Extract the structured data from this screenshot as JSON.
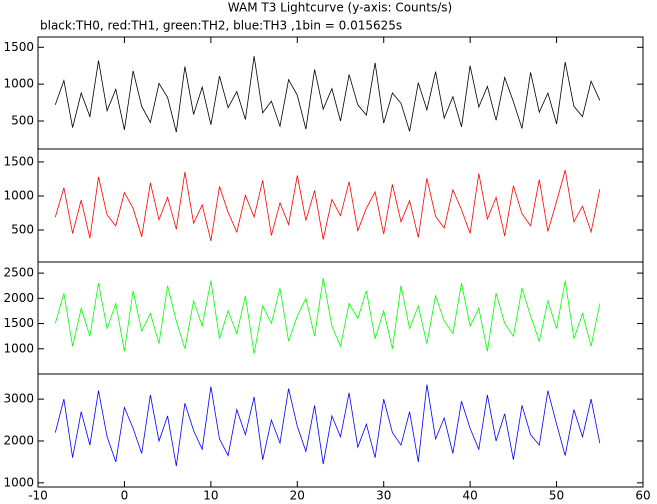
{
  "chart_data": {
    "type": "line",
    "title": "WAM T3 Lightcurve (y-axis: Counts/s)",
    "subtitle": "black:TH0, red:TH1, green:TH2, blue:TH3 ,1bin = 0.015625s",
    "xlim": [
      -10,
      60
    ],
    "xticks": [
      -10,
      0,
      10,
      20,
      30,
      40,
      50,
      60
    ],
    "x": [
      -8,
      -7,
      -6,
      -5,
      -4,
      -3,
      -2,
      -1,
      0,
      1,
      2,
      3,
      4,
      5,
      6,
      7,
      8,
      9,
      10,
      11,
      12,
      13,
      14,
      15,
      16,
      17,
      18,
      19,
      20,
      21,
      22,
      23,
      24,
      25,
      26,
      27,
      28,
      29,
      30,
      31,
      32,
      33,
      34,
      35,
      36,
      37,
      38,
      39,
      40,
      41,
      42,
      43,
      44,
      45,
      46,
      47,
      48,
      49,
      50,
      51,
      52,
      53,
      54,
      55
    ],
    "series": [
      {
        "color": "#000000",
        "ylim": [
          120,
          1640
        ],
        "yticks": [
          500,
          1000,
          1500
        ],
        "values": [
          720,
          1050,
          410,
          880,
          560,
          1320,
          640,
          930,
          380,
          1180,
          700,
          480,
          1010,
          820,
          350,
          1240,
          590,
          960,
          450,
          1110,
          680,
          900,
          520,
          1380,
          610,
          770,
          430,
          1060,
          850,
          390,
          1200,
          660,
          940,
          500,
          1130,
          720,
          580,
          1290,
          470,
          880,
          740,
          360,
          1020,
          650,
          1170,
          540,
          830,
          420,
          1250,
          690,
          970,
          510,
          1090,
          760,
          400,
          1160,
          620,
          880,
          460,
          1300,
          700,
          560,
          1040,
          780
        ]
      },
      {
        "color": "#ff0000",
        "ylim": [
          30,
          1690
        ],
        "yticks": [
          500,
          1000,
          1500
        ],
        "values": [
          690,
          1120,
          450,
          940,
          380,
          1280,
          720,
          560,
          1050,
          820,
          400,
          1190,
          650,
          980,
          510,
          1350,
          600,
          870,
          340,
          1140,
          760,
          470,
          1010,
          690,
          1230,
          420,
          900,
          580,
          1300,
          640,
          1080,
          360,
          950,
          710,
          1210,
          490,
          820,
          1060,
          440,
          1170,
          620,
          930,
          390,
          1260,
          700,
          530,
          1090,
          800,
          450,
          1330,
          660,
          980,
          410,
          1150,
          740,
          560,
          1240,
          480,
          920,
          1380,
          620,
          850,
          470,
          1100
        ]
      },
      {
        "color": "#00ff00",
        "ylim": [
          500,
          2720
        ],
        "yticks": [
          1000,
          1500,
          2000,
          2500
        ],
        "values": [
          1500,
          2100,
          1050,
          1800,
          1250,
          2300,
          1400,
          1900,
          950,
          2150,
          1350,
          1700,
          1100,
          2250,
          1550,
          1000,
          1950,
          1450,
          2350,
          1200,
          1750,
          1300,
          2050,
          900,
          1850,
          1500,
          2200,
          1150,
          1650,
          2000,
          1250,
          2400,
          1450,
          1050,
          1900,
          1600,
          2150,
          1200,
          1750,
          1000,
          2250,
          1400,
          1850,
          1100,
          2050,
          1550,
          1300,
          2300,
          1450,
          1800,
          950,
          2100,
          1500,
          1250,
          2200,
          1650,
          1150,
          1950,
          1400,
          2350,
          1200,
          1700,
          1050,
          1900
        ]
      },
      {
        "color": "#0000ff",
        "ylim": [
          900,
          3600
        ],
        "yticks": [
          1000,
          2000,
          3000
        ],
        "values": [
          2200,
          3000,
          1600,
          2700,
          1900,
          3200,
          2100,
          1500,
          2800,
          2300,
          1700,
          3100,
          2000,
          2600,
          1400,
          2900,
          2250,
          1800,
          3300,
          2050,
          1650,
          2750,
          2150,
          3050,
          1550,
          2500,
          1950,
          3250,
          2350,
          1750,
          2850,
          1450,
          2600,
          2100,
          3150,
          1850,
          2400,
          1600,
          3000,
          2200,
          1900,
          2700,
          1500,
          3350,
          2050,
          2550,
          1700,
          2950,
          2300,
          1800,
          3100,
          2000,
          2650,
          1550,
          2850,
          2150,
          1900,
          3200,
          2400,
          1650,
          2750,
          2100,
          3000,
          1950
        ]
      }
    ]
  }
}
